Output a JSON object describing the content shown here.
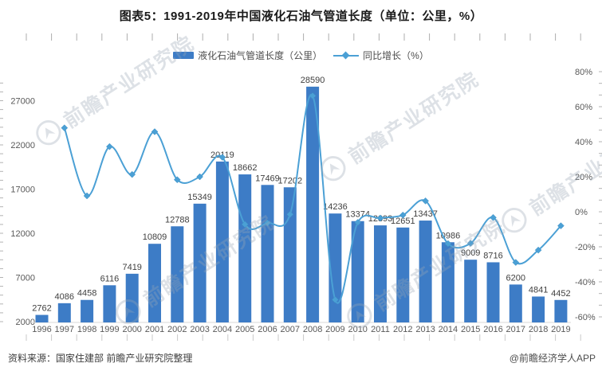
{
  "title": "图表5：1991-2019年中国液化石油气管道长度（单位：公里，%）",
  "legend": {
    "bar_label": "液化石油气管道长度（公里）",
    "line_label": "同比增长（%）"
  },
  "footer": {
    "source": "资料来源：国家住建部 前瞻产业研究院整理",
    "credit": "@前瞻经济学人APP"
  },
  "watermark": {
    "text": "前瞻产业研究院"
  },
  "colors": {
    "bar": "#3d7cc6",
    "line": "#4ba0d5",
    "axis_label": "#595959",
    "data_label": "#404040",
    "axis_line": "#d9d9d9",
    "tick": "#b3b3b3"
  },
  "chart_data": {
    "type": "bar",
    "title": "图表5：1991-2019年中国液化石油气管道长度（单位：公里，%）",
    "categories": [
      1996,
      1997,
      1998,
      1999,
      2000,
      2001,
      2002,
      2003,
      2004,
      2005,
      2006,
      2007,
      2008,
      2009,
      2010,
      2011,
      2012,
      2013,
      2014,
      2015,
      2016,
      2017,
      2018,
      2019
    ],
    "series": [
      {
        "name": "液化石油气管道长度（公里）",
        "type": "bar",
        "axis": "left",
        "values": [
          2762,
          4086,
          4458,
          6116,
          7419,
          10809,
          12788,
          15349,
          20119,
          18662,
          17469,
          17202,
          28590,
          14236,
          13374,
          12893,
          12651,
          13437,
          10986,
          9009,
          8716,
          6200,
          4841,
          4452
        ]
      },
      {
        "name": "同比增长（%）",
        "type": "line",
        "axis": "right",
        "values": [
          null,
          47.9,
          9.1,
          37.2,
          21.3,
          45.7,
          18.3,
          20.0,
          31.1,
          -7.2,
          -6.4,
          -1.5,
          66.2,
          -50.2,
          -6.1,
          -3.6,
          -1.9,
          6.2,
          -18.2,
          -18.0,
          -3.3,
          -28.9,
          -21.9,
          -8.0
        ]
      }
    ],
    "left_axis": {
      "unit": "公里",
      "min": 2000,
      "major_tick_interval": 5000,
      "minor_tick_interval": 1000,
      "ticks": [
        2000,
        7000,
        12000,
        17000,
        22000,
        27000
      ]
    },
    "right_axis": {
      "unit": "%",
      "major_tick_interval": 20,
      "ticks": [
        {
          "label": "80%",
          "value": 80
        },
        {
          "label": "60%",
          "value": 60
        },
        {
          "label": "40%",
          "value": 40
        },
        {
          "label": "20%",
          "value": 20
        },
        {
          "label": "0%",
          "value": 0
        },
        {
          "label": "-20%",
          "value": -20
        },
        {
          "label": "-40%",
          "value": -40
        },
        {
          "label": "-60%",
          "value": -60
        }
      ]
    },
    "grid": false,
    "legend_position": "top",
    "xlabel": "",
    "ylabel": ""
  }
}
